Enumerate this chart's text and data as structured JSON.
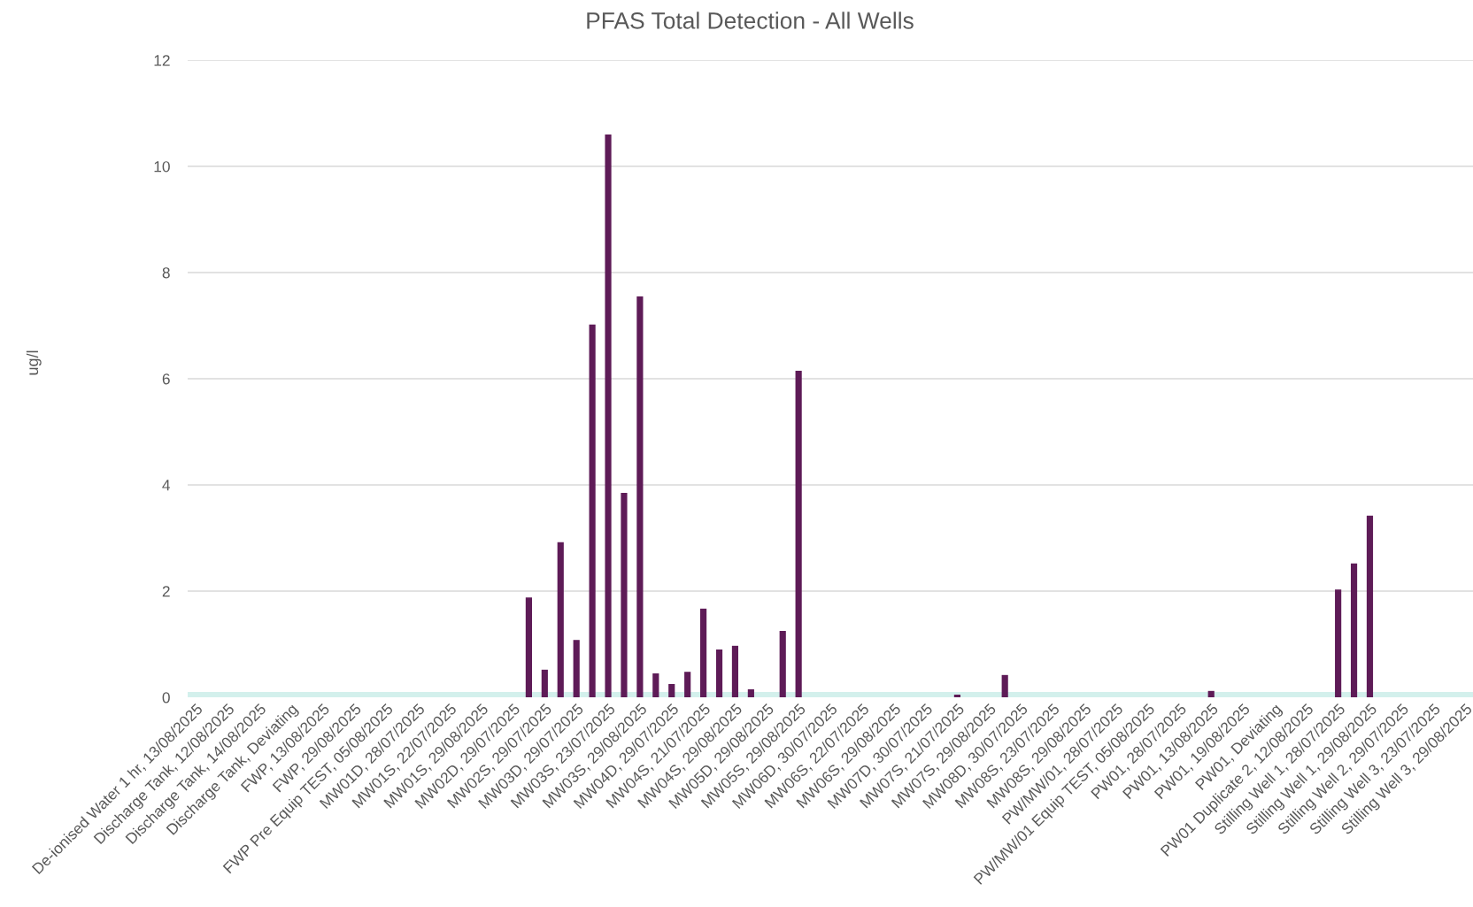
{
  "chart_data": {
    "type": "bar",
    "title": "PFAS Total Detection - All Wells",
    "ylabel": "ug/l",
    "categories": [
      "De-ionised Water 1 hr, 13/08/2025",
      null,
      "Discharge Tank, 12/08/2025",
      null,
      "Discharge Tank, 14/08/2025",
      null,
      "Discharge Tank, Deviating",
      null,
      "FWP, 13/08/2025",
      null,
      "FWP, 29/08/2025",
      null,
      "FWP Pre Equip TEST, 05/08/2025",
      null,
      "MW01D, 28/07/2025",
      null,
      "MW01S, 22/07/2025",
      null,
      "MW01S, 29/08/2025",
      null,
      "MW02D, 29/07/2025",
      null,
      "MW02S, 29/07/2025",
      null,
      "MW03D, 29/07/2025",
      null,
      "MW03S, 23/07/2025",
      null,
      "MW03S, 29/08/2025",
      null,
      "MW04D, 29/07/2025",
      null,
      "MW04S, 21/07/2025",
      null,
      "MW04S, 29/08/2025",
      null,
      "MW05D, 29/08/2025",
      null,
      "MW05S, 29/08/2025",
      null,
      "MW06D, 30/07/2025",
      null,
      "MW06S, 22/07/2025",
      null,
      "MW06S, 29/08/2025",
      null,
      "MW07D, 30/07/2025",
      null,
      "MW07S, 21/07/2025",
      null,
      "MW07S, 29/08/2025",
      null,
      "MW08D, 30/07/2025",
      null,
      "MW08S, 23/07/2025",
      null,
      "MW08S, 29/08/2025",
      null,
      "PW/MW/01, 28/07/2025",
      null,
      "PW/MW/01 Equip TEST, 05/08/2025",
      null,
      "PW01, 28/07/2025",
      null,
      "PW01, 13/08/2025",
      null,
      "PW01, 19/08/2025",
      null,
      "PW01, Deviating",
      null,
      "PW01 Duplicate 2, 12/08/2025",
      null,
      "Stilling Well 1, 28/07/2025",
      null,
      "Stilling Well 1, 29/08/2025",
      null,
      "Stilling Well 2, 29/07/2025",
      null,
      "Stilling Well 3, 23/07/2025",
      null,
      "Stilling Well 3, 29/08/2025"
    ],
    "values": [
      null,
      null,
      null,
      null,
      null,
      null,
      null,
      null,
      null,
      null,
      null,
      null,
      null,
      null,
      null,
      null,
      null,
      null,
      null,
      null,
      null,
      1.88,
      0.52,
      2.92,
      1.08,
      7.02,
      10.6,
      3.85,
      7.55,
      0.45,
      0.25,
      0.48,
      1.67,
      0.9,
      0.97,
      0.15,
      null,
      1.25,
      6.15,
      null,
      null,
      null,
      null,
      null,
      null,
      null,
      null,
      null,
      0.05,
      null,
      null,
      0.42,
      null,
      null,
      null,
      null,
      null,
      null,
      null,
      null,
      null,
      null,
      null,
      null,
      0.12,
      null,
      null,
      null,
      null,
      null,
      null,
      null,
      2.03,
      2.52,
      3.42,
      null,
      null,
      null,
      null,
      null,
      null
    ],
    "color": "#5e1b57",
    "ylim": [
      0,
      12
    ],
    "yticks": [
      0,
      2,
      4,
      6,
      8,
      10,
      12
    ],
    "grid": "y",
    "bands": [
      {
        "axis": "y",
        "from": 0,
        "to": 0.1,
        "color": "#d3f0ec"
      }
    ]
  }
}
